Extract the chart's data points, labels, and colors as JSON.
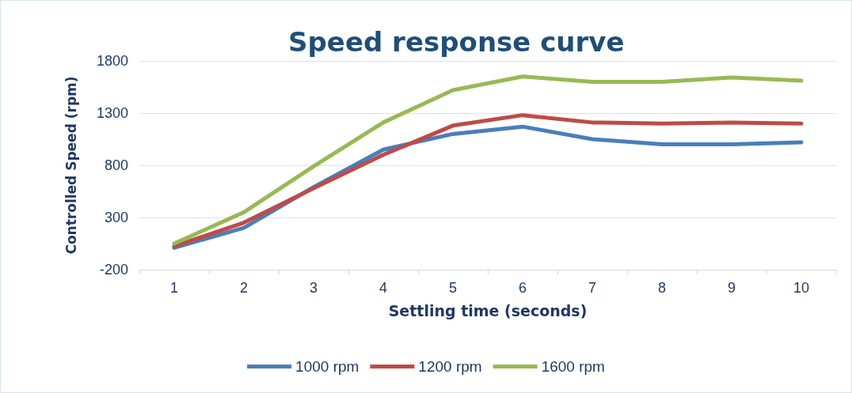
{
  "chart_data": {
    "type": "line",
    "title": "Speed response curve",
    "xlabel": "Settling time (seconds)",
    "ylabel": "Controlled Speed (rpm)",
    "categories": [
      "1",
      "2",
      "3",
      "4",
      "5",
      "6",
      "7",
      "8",
      "9",
      "10"
    ],
    "series": [
      {
        "name": "1000 rpm",
        "color": "#4a7ebb",
        "values": [
          10,
          200,
          590,
          950,
          1100,
          1170,
          1050,
          1000,
          1000,
          1020
        ]
      },
      {
        "name": "1200 rpm",
        "color": "#be4b48",
        "values": [
          25,
          250,
          580,
          900,
          1180,
          1280,
          1210,
          1200,
          1210,
          1200
        ]
      },
      {
        "name": "1600 rpm",
        "color": "#98b954",
        "values": [
          50,
          350,
          790,
          1210,
          1520,
          1650,
          1600,
          1600,
          1640,
          1610
        ]
      }
    ],
    "ylim": [
      -200,
      1800
    ],
    "yticks": [
      -200,
      300,
      800,
      1300,
      1800
    ],
    "grid": "y",
    "legend": "bottom",
    "marker": "none",
    "line_style": "solid"
  }
}
